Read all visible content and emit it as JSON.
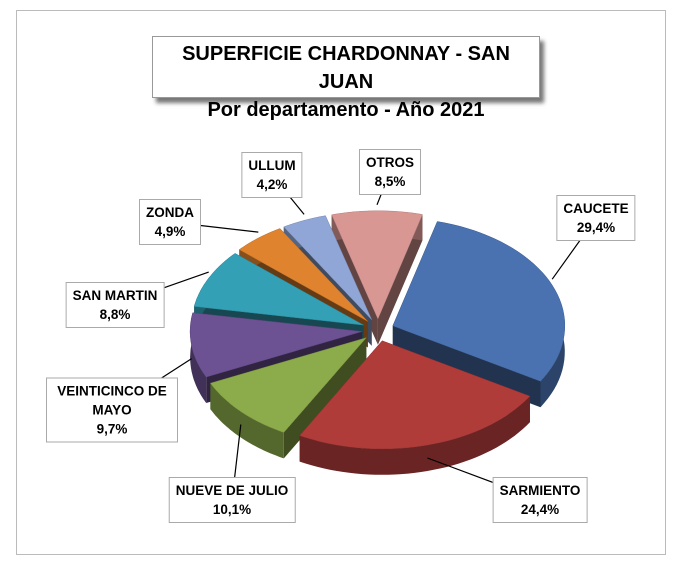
{
  "chart_data": {
    "type": "pie",
    "title": "SUPERFICIE CHARDONNAY - SAN JUAN",
    "subtitle": "Por departamento - Año 2021",
    "categories": [
      "CAUCETE",
      "SARMIENTO",
      "NUEVE DE JULIO",
      "VEINTICINCO DE MAYO",
      "SAN MARTIN",
      "ZONDA",
      "ULLUM",
      "OTROS"
    ],
    "values": [
      29.4,
      24.4,
      10.1,
      9.7,
      8.8,
      4.9,
      4.2,
      8.5
    ],
    "value_labels": [
      "29,4%",
      "24,4%",
      "10,1%",
      "9,7%",
      "8,8%",
      "4,9%",
      "4,2%",
      "8,5%"
    ],
    "colors": [
      "#4a72b0",
      "#b03c3a",
      "#8cab4a",
      "#6c5193",
      "#33a0b6",
      "#e0832f",
      "#90a6d6",
      "#d99794"
    ]
  }
}
